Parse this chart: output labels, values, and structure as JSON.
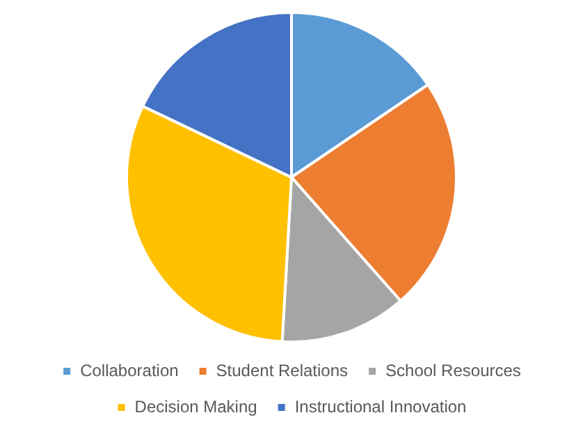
{
  "chart_data": {
    "type": "pie",
    "categories": [
      "Collaboration",
      "Student Relations",
      "School Resources",
      "Decision Making",
      "Instructional Innovation"
    ],
    "values": [
      15.5,
      23,
      12.4,
      31.2,
      17.9
    ],
    "colors": [
      "#5b9bd5",
      "#ed7d31",
      "#a5a5a5",
      "#ffc000",
      "#4472c4"
    ],
    "legend": "bottom"
  }
}
